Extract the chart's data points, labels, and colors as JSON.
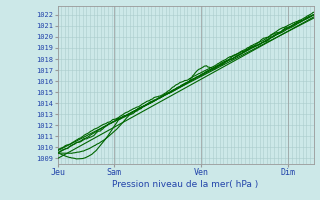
{
  "title": "Pression niveau de la mer( hPa )",
  "bg_color": "#cce8e8",
  "grid_color": "#aacccc",
  "line_color": "#006600",
  "yticks": [
    1009,
    1010,
    1011,
    1012,
    1013,
    1014,
    1015,
    1016,
    1017,
    1018,
    1019,
    1020,
    1021,
    1022
  ],
  "ylim": [
    1008.5,
    1022.8
  ],
  "xtick_labels": [
    "Jeu",
    "Sam",
    "Ven",
    "Dim"
  ],
  "xtick_positions": [
    0.0,
    0.22,
    0.56,
    0.9
  ],
  "xlabel": "Pression niveau de la mer( hPa )",
  "ystart": 1009.5,
  "yend": 1022.0,
  "n_points": 300
}
